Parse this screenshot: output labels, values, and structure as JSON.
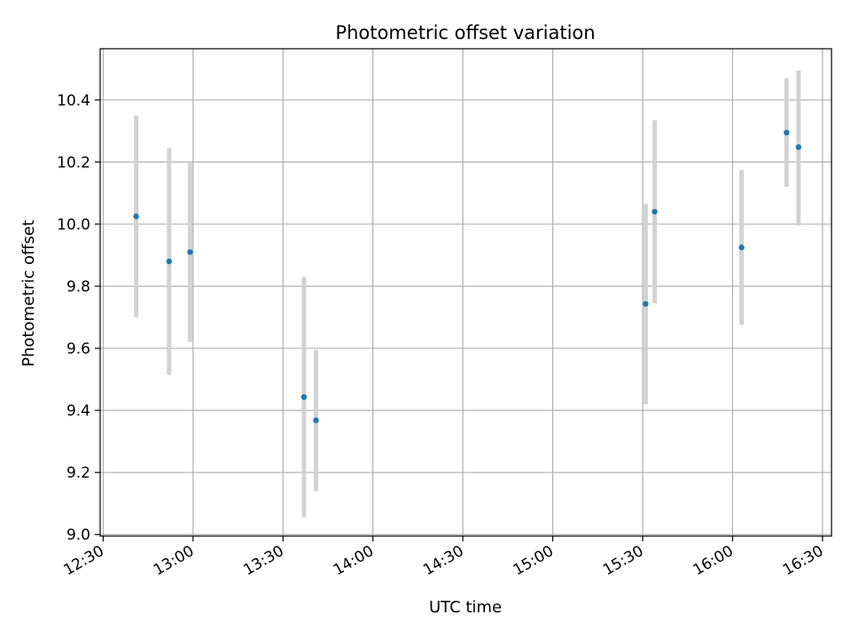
{
  "chart_data": {
    "type": "scatter",
    "title": "Photometric offset variation",
    "xlabel": "UTC time",
    "ylabel": "Photometric offset",
    "x_axis_type": "time",
    "xlim": [
      "12:29",
      "16:33"
    ],
    "ylim": [
      8.995,
      10.565
    ],
    "x_ticks": [
      "12:30",
      "13:00",
      "13:30",
      "14:00",
      "14:30",
      "15:00",
      "15:30",
      "16:00",
      "16:30"
    ],
    "y_ticks": [
      9.0,
      9.2,
      9.4,
      9.6,
      9.8,
      10.0,
      10.2,
      10.4
    ],
    "grid": true,
    "marker_color": "#1f77b4",
    "errorbar_color": "#d3d3d3",
    "points": [
      {
        "x": "12:41",
        "y": 10.025,
        "ylow": 9.7,
        "yhigh": 10.35
      },
      {
        "x": "12:52",
        "y": 9.88,
        "ylow": 9.515,
        "yhigh": 10.245
      },
      {
        "x": "12:59",
        "y": 9.91,
        "ylow": 9.62,
        "yhigh": 10.2
      },
      {
        "x": "13:37",
        "y": 9.443,
        "ylow": 9.055,
        "yhigh": 9.83
      },
      {
        "x": "13:41",
        "y": 9.368,
        "ylow": 9.14,
        "yhigh": 9.595
      },
      {
        "x": "15:31",
        "y": 9.743,
        "ylow": 9.42,
        "yhigh": 10.065
      },
      {
        "x": "15:34",
        "y": 10.04,
        "ylow": 9.745,
        "yhigh": 10.335
      },
      {
        "x": "16:03",
        "y": 9.925,
        "ylow": 9.675,
        "yhigh": 10.175
      },
      {
        "x": "16:18",
        "y": 10.295,
        "ylow": 10.12,
        "yhigh": 10.47
      },
      {
        "x": "16:22",
        "y": 10.248,
        "ylow": 9.995,
        "yhigh": 10.495
      }
    ]
  }
}
